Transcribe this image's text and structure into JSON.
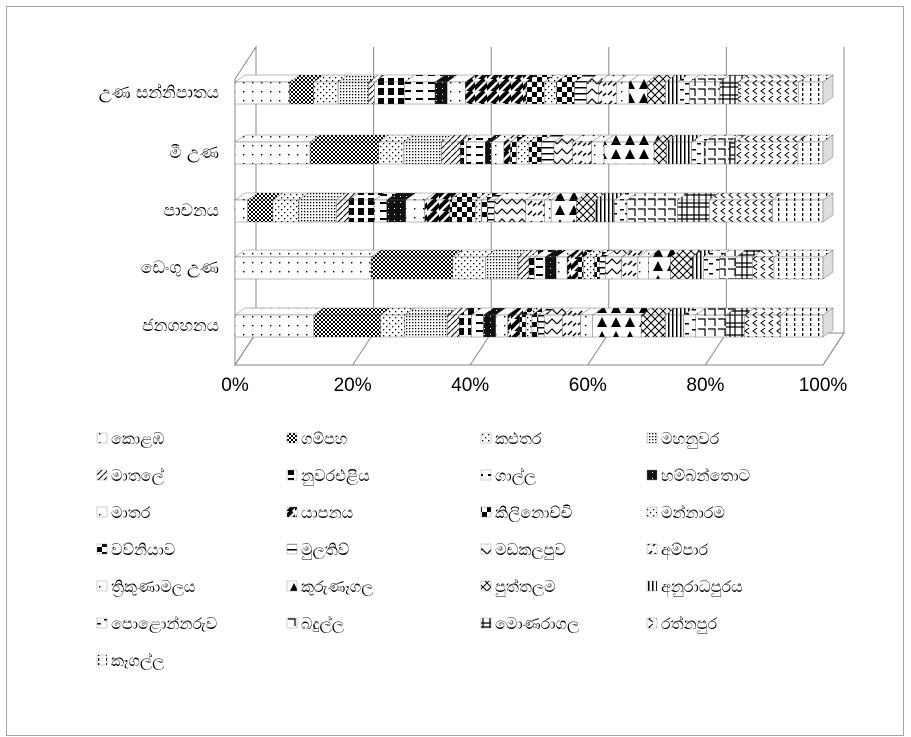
{
  "chart_data": {
    "type": "bar",
    "orientation": "horizontal",
    "stacking": "percent",
    "style": "3d",
    "categories": [
      "උණ සන්නිපාතය",
      "මී උණ",
      "පාචනය",
      "ඩෙංගු උණ",
      "ජනගහනය"
    ],
    "x_ticks": [
      "0%",
      "20%",
      "40%",
      "60%",
      "80%",
      "100%"
    ],
    "xlim": [
      0,
      100
    ],
    "grid": true,
    "legend_position": "bottom",
    "series": [
      {
        "name": "කොළඹ",
        "values": [
          9,
          12,
          2,
          25,
          13
        ],
        "pattern": "dots-sparse"
      },
      {
        "name": "ගම්පහ",
        "values": [
          4,
          11,
          4,
          15,
          11
        ],
        "pattern": "checker-fine"
      },
      {
        "name": "කළුතර",
        "values": [
          4,
          4,
          4,
          6,
          4
        ],
        "pattern": "dots"
      },
      {
        "name": "මහනුවර",
        "values": [
          5,
          6,
          6,
          6,
          7
        ],
        "pattern": "dots-dense"
      },
      {
        "name": "මාතලේ",
        "values": [
          1,
          3,
          2,
          2,
          2
        ],
        "pattern": "diag-light"
      },
      {
        "name": "නුවරඑළිය",
        "values": [
          5,
          1,
          4,
          1,
          2
        ],
        "pattern": "blocks"
      },
      {
        "name": "ගාල්ල",
        "values": [
          5,
          3,
          2,
          2,
          2
        ],
        "pattern": "dashes"
      },
      {
        "name": "හම්බන්තොට",
        "values": [
          2,
          1,
          3,
          2,
          2
        ],
        "pattern": "solid-dark"
      },
      {
        "name": "මාතර",
        "values": [
          3,
          2,
          3,
          2,
          2
        ],
        "pattern": "dots-sparse"
      },
      {
        "name": "යාපනය",
        "values": [
          10,
          1,
          4,
          2,
          2
        ],
        "pattern": "diag-heavy"
      },
      {
        "name": "කිලිනොච්චි",
        "values": [
          3,
          1,
          4,
          1,
          1
        ],
        "pattern": "checker-big"
      },
      {
        "name": "මන්නාරම",
        "values": [
          2,
          2,
          1,
          2,
          1
        ],
        "pattern": "dots"
      },
      {
        "name": "වව්නියාව",
        "values": [
          3,
          2,
          1,
          1,
          1
        ],
        "pattern": "checker-big"
      },
      {
        "name": "මුලතිව්",
        "values": [
          2,
          2,
          1,
          1,
          1
        ],
        "pattern": "hlines"
      },
      {
        "name": "මඩකලපුව",
        "values": [
          2,
          3,
          5,
          3,
          3
        ],
        "pattern": "zigzag"
      },
      {
        "name": "අම්පාර",
        "values": [
          3,
          3,
          3,
          3,
          3
        ],
        "pattern": "dash-diag"
      },
      {
        "name": "ත්‍රිකුණාමලය",
        "values": [
          2,
          2,
          1,
          2,
          2
        ],
        "pattern": "dots-sparse"
      },
      {
        "name": "කුරුණෑගල",
        "values": [
          3,
          8,
          4,
          4,
          8
        ],
        "pattern": "triangles"
      },
      {
        "name": "පුත්තලම",
        "values": [
          3,
          2,
          3,
          4,
          4
        ],
        "pattern": "diag-cross"
      },
      {
        "name": "අනුරාධපුරය",
        "values": [
          2,
          4,
          3,
          2,
          3
        ],
        "pattern": "vlines"
      },
      {
        "name": "පොළොන්නරුව",
        "values": [
          2,
          2,
          2,
          3,
          2
        ],
        "pattern": "dash-mix"
      },
      {
        "name": "බදුල්ල",
        "values": [
          5,
          4,
          8,
          3,
          5
        ],
        "pattern": "frame"
      },
      {
        "name": "මොණරාගල",
        "values": [
          3,
          1,
          5,
          3,
          3
        ],
        "pattern": "hash"
      },
      {
        "name": "රත්නපුර",
        "values": [
          10,
          10,
          10,
          4,
          6
        ],
        "pattern": "chevrons"
      },
      {
        "name": "කෑගල්ල",
        "values": [
          4,
          4,
          8,
          9,
          7
        ],
        "pattern": "ticks"
      }
    ]
  }
}
